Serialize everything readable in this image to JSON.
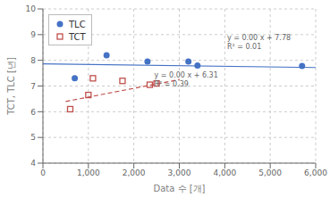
{
  "chart_data": {
    "type": "scatter",
    "x_label": "Data 수 [개]",
    "y_label": "TCT, TLC [년]",
    "series": [
      {
        "type": "line",
        "color": "#4472C4",
        "line_style": "solid",
        "x": [
          0,
          6000
        ],
        "values": [
          7.86,
          7.72
        ]
      },
      {
        "type": "line",
        "color": "#C0504D",
        "line_style": "dashed",
        "x": [
          500,
          3000
        ],
        "values": [
          6.4,
          7.25
        ]
      },
      {
        "name": "TLC",
        "type": "scatter",
        "color": "#4472C4",
        "marker": "circle",
        "x": [
          700,
          1400,
          2300,
          3200,
          3400,
          5700
        ],
        "values": [
          7.3,
          8.2,
          7.95,
          7.95,
          7.8,
          7.78
        ]
      },
      {
        "name": "TCT",
        "type": "scatter",
        "color": "#C0504D",
        "marker": "square_open",
        "x": [
          600,
          1000,
          1100,
          1750,
          2350,
          2500
        ],
        "values": [
          6.1,
          6.65,
          7.3,
          7.2,
          7.05,
          7.1
        ]
      }
    ],
    "annotations": [
      {
        "text": "y = 0.00 x + 7.78\nR² = 0.01",
        "x": 4050,
        "y": 9.05,
        "color": "#666666"
      },
      {
        "text": "y = 0.00 x + 6.31\nR² = 0.39",
        "x": 2450,
        "y": 7.6,
        "color": "#666666"
      }
    ],
    "xlim": [
      0,
      6000
    ],
    "ylim": [
      4,
      10
    ],
    "xticks": [
      {
        "value": 0,
        "label": "0"
      },
      {
        "value": 1000,
        "label": "1,000"
      },
      {
        "value": 2000,
        "label": "2,000"
      },
      {
        "value": 3000,
        "label": "3,000"
      },
      {
        "value": 4000,
        "label": "4,000"
      },
      {
        "value": 5000,
        "label": "5,000"
      },
      {
        "value": 6000,
        "label": "6,000"
      }
    ],
    "yticks": [
      4,
      5,
      6,
      7,
      8,
      9,
      10
    ],
    "grid": true,
    "legend": "upper left"
  }
}
